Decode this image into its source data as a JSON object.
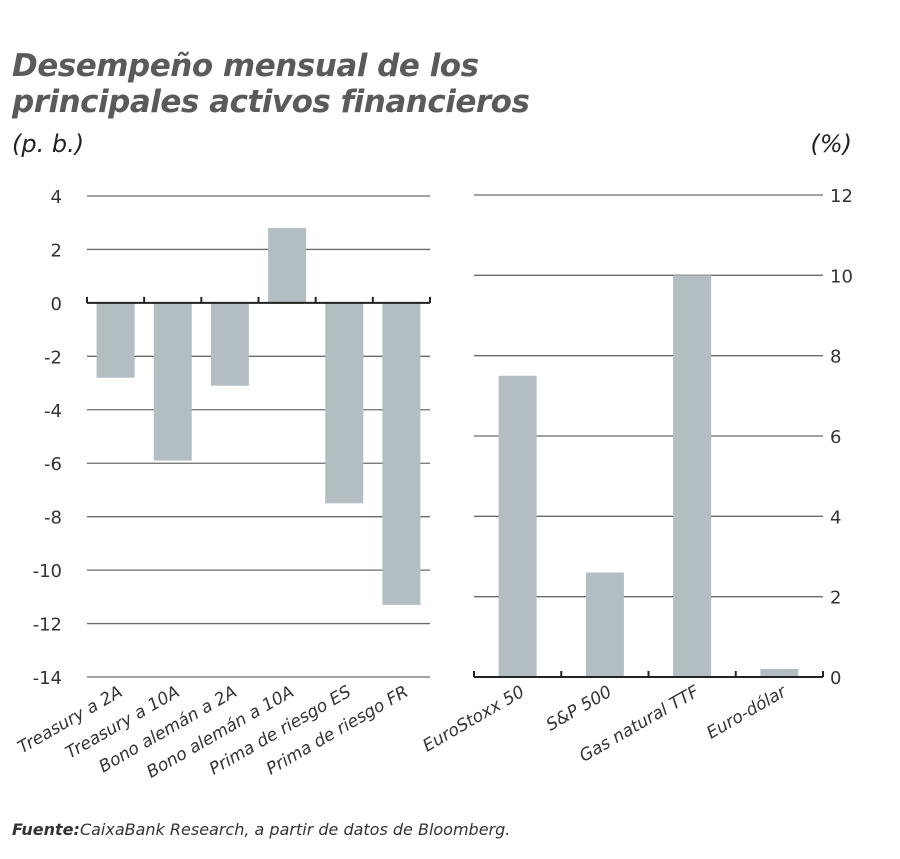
{
  "title": "Desempeño mensual de los principales activos financieros",
  "source_label": "Fuente:",
  "source_text": "CaixaBank Research, a partir de datos de Bloomberg.",
  "bar_color": "#b3bec2",
  "chart_data": [
    {
      "type": "bar",
      "unit": "(p. b.)",
      "categories": [
        "Treasury a 2A",
        "Treasury a 10A",
        "Bono alemán a 2A",
        "Bono alemán a 10A",
        "Prima de riesgo ES",
        "Prima de riesgo FR"
      ],
      "values": [
        -2.8,
        -5.9,
        -3.1,
        2.8,
        -7.5,
        -11.3
      ],
      "ylim": [
        -14,
        4
      ],
      "yticks": [
        4,
        2,
        0,
        -2,
        -4,
        -6,
        -8,
        -10,
        -12,
        -14
      ],
      "axis_side": "left",
      "grid": true
    },
    {
      "type": "bar",
      "unit": "(%)",
      "categories": [
        "EuroStoxx 50",
        "S&P 500",
        "Gas natural TTF",
        "Euro-dólar"
      ],
      "values": [
        7.5,
        2.6,
        10.0,
        0.2
      ],
      "ylim": [
        0,
        12
      ],
      "yticks": [
        12,
        10,
        8,
        6,
        4,
        2,
        0
      ],
      "axis_side": "right",
      "grid": true
    }
  ]
}
